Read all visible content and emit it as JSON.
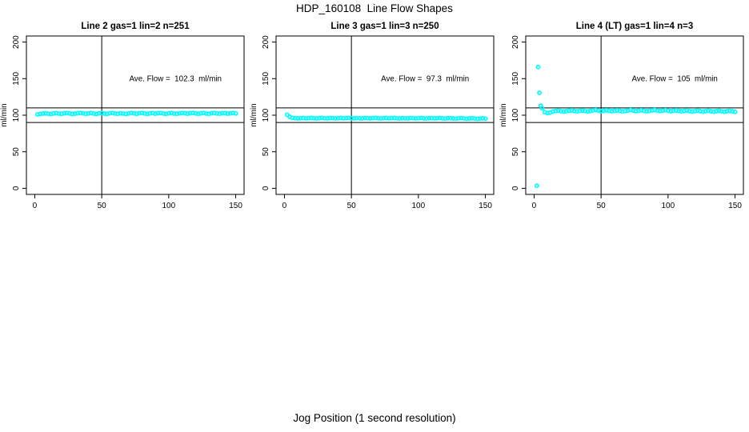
{
  "figure": {
    "title": "HDP_160108  Line Flow Shapes",
    "xlabel": "Jog Position (1 second resolution)"
  },
  "style": {
    "point_color": "#00FFFF",
    "axis_color": "#000000",
    "background": "#FFFFFF"
  },
  "chart_data": [
    {
      "type": "scatter",
      "title": "Line 2 gas=1 lin=2 n=251",
      "annotation": "Ave. Flow =  102.3  ml/min",
      "ave_flow_ml_min": 102.3,
      "n": 251,
      "xlabel": "",
      "ylabel": "ml/min",
      "xlim": [
        0,
        150
      ],
      "ylim": [
        0,
        200
      ],
      "x_ticks": [
        0,
        50,
        100,
        150
      ],
      "y_ticks": [
        0,
        50,
        100,
        150,
        200
      ],
      "h_ref_lines": [
        90,
        110
      ],
      "v_ref_lines": [
        50
      ],
      "grid": false,
      "legend": "none",
      "points": {
        "x": [
          2,
          4,
          6,
          8,
          10,
          12,
          14,
          16,
          18,
          20,
          22,
          24,
          26,
          28,
          30,
          32,
          34,
          36,
          38,
          40,
          42,
          44,
          46,
          48,
          50,
          52,
          54,
          56,
          58,
          60,
          62,
          64,
          66,
          68,
          70,
          72,
          74,
          76,
          78,
          80,
          82,
          84,
          86,
          88,
          90,
          92,
          94,
          96,
          98,
          100,
          102,
          104,
          106,
          108,
          110,
          112,
          114,
          116,
          118,
          120,
          122,
          124,
          126,
          128,
          130,
          132,
          134,
          136,
          138,
          140,
          142,
          144,
          146,
          148,
          150
        ],
        "y": [
          101.0,
          101.8,
          102.2,
          102.5,
          102.1,
          101.7,
          102.4,
          102.8,
          102.3,
          101.9,
          102.6,
          103.0,
          102.4,
          101.8,
          102.2,
          102.7,
          103.1,
          102.5,
          102.0,
          102.4,
          102.9,
          102.3,
          101.8,
          102.5,
          102.8,
          102.2,
          101.9,
          102.6,
          103.0,
          102.4,
          102.0,
          102.7,
          102.3,
          101.8,
          102.4,
          102.9,
          102.5,
          102.0,
          102.6,
          103.1,
          102.4,
          101.9,
          102.5,
          102.8,
          102.2,
          102.7,
          103.0,
          102.3,
          101.9,
          102.6,
          102.9,
          102.3,
          102.0,
          102.5,
          103.0,
          102.6,
          102.1,
          102.7,
          103.1,
          102.5,
          102.0,
          102.6,
          102.9,
          102.3,
          102.0,
          102.7,
          103.0,
          102.4,
          102.1,
          102.6,
          102.8,
          102.2,
          102.5,
          102.9,
          102.4
        ]
      }
    },
    {
      "type": "scatter",
      "title": "Line 3 gas=1 lin=3 n=250",
      "annotation": "Ave. Flow =  97.3  ml/min",
      "ave_flow_ml_min": 97.3,
      "n": 250,
      "xlabel": "",
      "ylabel": "ml/min",
      "xlim": [
        0,
        150
      ],
      "ylim": [
        0,
        200
      ],
      "x_ticks": [
        0,
        50,
        100,
        150
      ],
      "y_ticks": [
        0,
        50,
        100,
        150,
        200
      ],
      "h_ref_lines": [
        90,
        110
      ],
      "v_ref_lines": [
        50
      ],
      "grid": false,
      "legend": "none",
      "points": {
        "x": [
          2,
          4,
          6,
          8,
          10,
          12,
          14,
          16,
          18,
          20,
          22,
          24,
          26,
          28,
          30,
          32,
          34,
          36,
          38,
          40,
          42,
          44,
          46,
          48,
          50,
          52,
          54,
          56,
          58,
          60,
          62,
          64,
          66,
          68,
          70,
          72,
          74,
          76,
          78,
          80,
          82,
          84,
          86,
          88,
          90,
          92,
          94,
          96,
          98,
          100,
          102,
          104,
          106,
          108,
          110,
          112,
          114,
          116,
          118,
          120,
          122,
          124,
          126,
          128,
          130,
          132,
          134,
          136,
          138,
          140,
          142,
          144,
          146,
          148,
          150
        ],
        "y": [
          100.6,
          97.8,
          96.4,
          95.9,
          95.6,
          95.8,
          96.1,
          95.7,
          95.9,
          96.2,
          95.8,
          95.5,
          96.0,
          96.3,
          95.8,
          95.6,
          96.1,
          95.9,
          95.5,
          96.0,
          96.2,
          95.7,
          95.9,
          96.3,
          95.8,
          95.6,
          96.0,
          95.8,
          95.5,
          96.1,
          95.9,
          95.6,
          96.0,
          96.2,
          95.8,
          95.5,
          95.9,
          96.1,
          95.7,
          95.9,
          96.2,
          95.8,
          95.5,
          96.0,
          95.8,
          95.6,
          96.0,
          95.9,
          95.5,
          95.8,
          96.1,
          95.7,
          95.5,
          95.9,
          96.0,
          95.6,
          95.8,
          96.1,
          95.7,
          95.4,
          95.8,
          96.0,
          95.6,
          95.3,
          95.7,
          95.9,
          95.5,
          95.2,
          95.6,
          95.8,
          95.4,
          95.1,
          95.5,
          95.7,
          95.3
        ]
      }
    },
    {
      "type": "scatter",
      "title": "Line 4 (LT) gas=1 lin=4 n=3",
      "annotation": "Ave. Flow =  105  ml/min",
      "ave_flow_ml_min": 105,
      "n": 3,
      "xlabel": "",
      "ylabel": "ml/min",
      "xlim": [
        0,
        150
      ],
      "ylim": [
        0,
        200
      ],
      "x_ticks": [
        0,
        50,
        100,
        150
      ],
      "y_ticks": [
        0,
        50,
        100,
        150,
        200
      ],
      "h_ref_lines": [
        90,
        110
      ],
      "v_ref_lines": [
        50
      ],
      "grid": false,
      "legend": "none",
      "points": {
        "x": [
          2,
          3,
          4,
          5,
          6,
          8,
          10,
          12,
          14,
          16,
          18,
          20,
          22,
          24,
          26,
          28,
          30,
          32,
          34,
          36,
          38,
          40,
          42,
          44,
          46,
          48,
          50,
          52,
          54,
          56,
          58,
          60,
          62,
          64,
          66,
          68,
          70,
          72,
          74,
          76,
          78,
          80,
          82,
          84,
          86,
          88,
          90,
          92,
          94,
          96,
          98,
          100,
          102,
          104,
          106,
          108,
          110,
          112,
          114,
          116,
          118,
          120,
          122,
          124,
          126,
          128,
          130,
          132,
          134,
          136,
          138,
          140,
          142,
          144,
          146,
          148,
          150
        ],
        "y": [
          3.5,
          166,
          130.5,
          113,
          109.5,
          104.2,
          102.8,
          103.6,
          105.0,
          105.8,
          106.3,
          105.6,
          104.9,
          105.4,
          106.1,
          106.6,
          105.8,
          105.2,
          105.9,
          106.4,
          105.7,
          105.1,
          105.8,
          106.5,
          107.0,
          106.2,
          105.5,
          106.0,
          106.7,
          106.1,
          105.4,
          106.0,
          106.6,
          105.9,
          105.3,
          105.8,
          106.4,
          107.0,
          106.3,
          105.6,
          106.1,
          106.8,
          106.0,
          105.4,
          105.9,
          106.5,
          107.1,
          106.4,
          105.7,
          106.2,
          106.9,
          106.1,
          105.5,
          106.0,
          106.6,
          105.9,
          105.2,
          105.8,
          106.3,
          105.6,
          105.0,
          105.7,
          106.2,
          105.5,
          104.9,
          105.6,
          106.1,
          105.4,
          104.8,
          105.5,
          106.0,
          105.3,
          104.7,
          105.4,
          105.9,
          105.2,
          104.6
        ]
      }
    }
  ]
}
